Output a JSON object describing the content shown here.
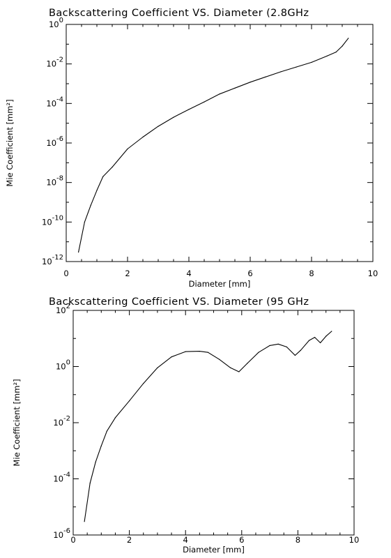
{
  "chart_data": [
    {
      "type": "line",
      "title": "Backscattering Coefficient VS. Diameter (2.8GHz",
      "xlabel": "Diameter [mm]",
      "ylabel": "Mie Coefficient [mm²]",
      "xlim": [
        0,
        10
      ],
      "ylim": [
        1e-12,
        1
      ],
      "yscale": "log",
      "grid": false,
      "x_ticks": [
        "0",
        "2",
        "4",
        "6",
        "8",
        "10"
      ],
      "y_ticks": [
        {
          "mantissa": "10",
          "exp": "-12",
          "value": 1e-12
        },
        {
          "mantissa": "10",
          "exp": "-10",
          "value": 1e-10
        },
        {
          "mantissa": "10",
          "exp": "-8",
          "value": 1e-08
        },
        {
          "mantissa": "10",
          "exp": "-6",
          "value": 1e-06
        },
        {
          "mantissa": "10",
          "exp": "-4",
          "value": 0.0001
        },
        {
          "mantissa": "10",
          "exp": "-2",
          "value": 0.01
        },
        {
          "mantissa": "10",
          "exp": "0",
          "value": 1
        }
      ],
      "series": [
        {
          "x": [
            0.4,
            0.6,
            0.8,
            1.0,
            1.2,
            1.5,
            2.0,
            2.5,
            3.0,
            3.5,
            4.0,
            4.5,
            5.0,
            5.5,
            6.0,
            6.5,
            7.0,
            7.5,
            8.0,
            8.5,
            8.8,
            9.0,
            9.2
          ],
          "y": [
            3e-12,
            1e-10,
            7e-10,
            4e-09,
            2e-08,
            6e-08,
            5e-07,
            2e-06,
            7e-06,
            2e-05,
            5e-05,
            0.00012,
            0.0003,
            0.0006,
            0.0012,
            0.0022,
            0.004,
            0.007,
            0.012,
            0.025,
            0.04,
            0.08,
            0.2
          ]
        }
      ]
    },
    {
      "type": "line",
      "title": "Backscattering Coefficient VS. Diameter (95 GHz",
      "xlabel": "Diameter [mm]",
      "ylabel": "Mie Coefficient [mm²]",
      "xlim": [
        0,
        10
      ],
      "ylim": [
        1e-06,
        100
      ],
      "yscale": "log",
      "grid": false,
      "x_ticks": [
        "0",
        "2",
        "4",
        "6",
        "8",
        "10"
      ],
      "y_ticks": [
        {
          "mantissa": "10",
          "exp": "-6",
          "value": 1e-06
        },
        {
          "mantissa": "10",
          "exp": "-4",
          "value": 0.0001
        },
        {
          "mantissa": "10",
          "exp": "-2",
          "value": 0.01
        },
        {
          "mantissa": "10",
          "exp": "0",
          "value": 1
        },
        {
          "mantissa": "10",
          "exp": "2",
          "value": 100
        }
      ],
      "series": [
        {
          "x": [
            0.4,
            0.6,
            0.8,
            1.0,
            1.2,
            1.5,
            2.0,
            2.5,
            3.0,
            3.5,
            4.0,
            4.5,
            4.8,
            5.2,
            5.6,
            5.9,
            6.2,
            6.6,
            7.0,
            7.3,
            7.6,
            7.9,
            8.1,
            8.4,
            8.6,
            8.8,
            9.0,
            9.2
          ],
          "y": [
            3e-06,
            7e-05,
            0.0004,
            0.0015,
            0.005,
            0.015,
            0.06,
            0.25,
            0.9,
            2.2,
            3.4,
            3.5,
            3.2,
            1.8,
            0.9,
            0.65,
            1.3,
            3.2,
            5.6,
            6.3,
            5.0,
            2.5,
            3.8,
            8.5,
            11,
            7.0,
            12,
            18
          ]
        }
      ]
    }
  ]
}
